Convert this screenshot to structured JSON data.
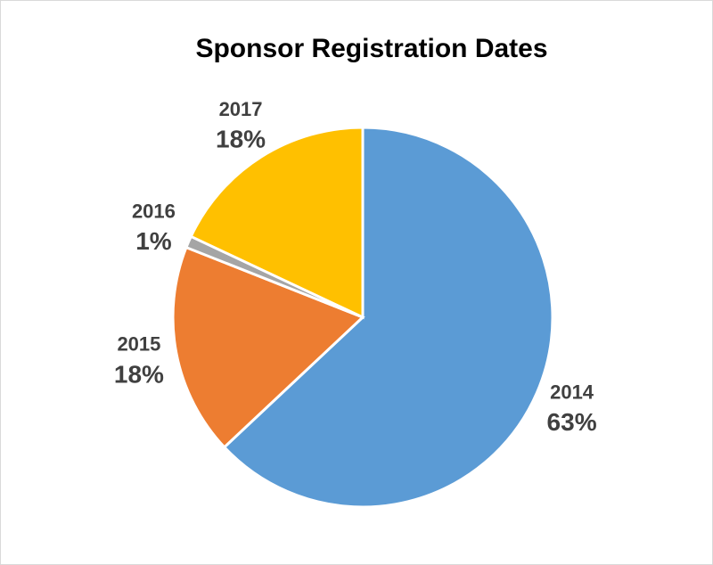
{
  "chart_data": {
    "type": "pie",
    "title": "Sponsor Registration Dates",
    "categories": [
      "2014",
      "2015",
      "2016",
      "2017"
    ],
    "values": [
      63,
      18,
      1,
      18
    ],
    "value_labels": [
      "63%",
      "18%",
      "1%",
      "18%"
    ],
    "colors": [
      "#5b9bd5",
      "#ed7d31",
      "#a5a5a5",
      "#ffc000"
    ]
  }
}
